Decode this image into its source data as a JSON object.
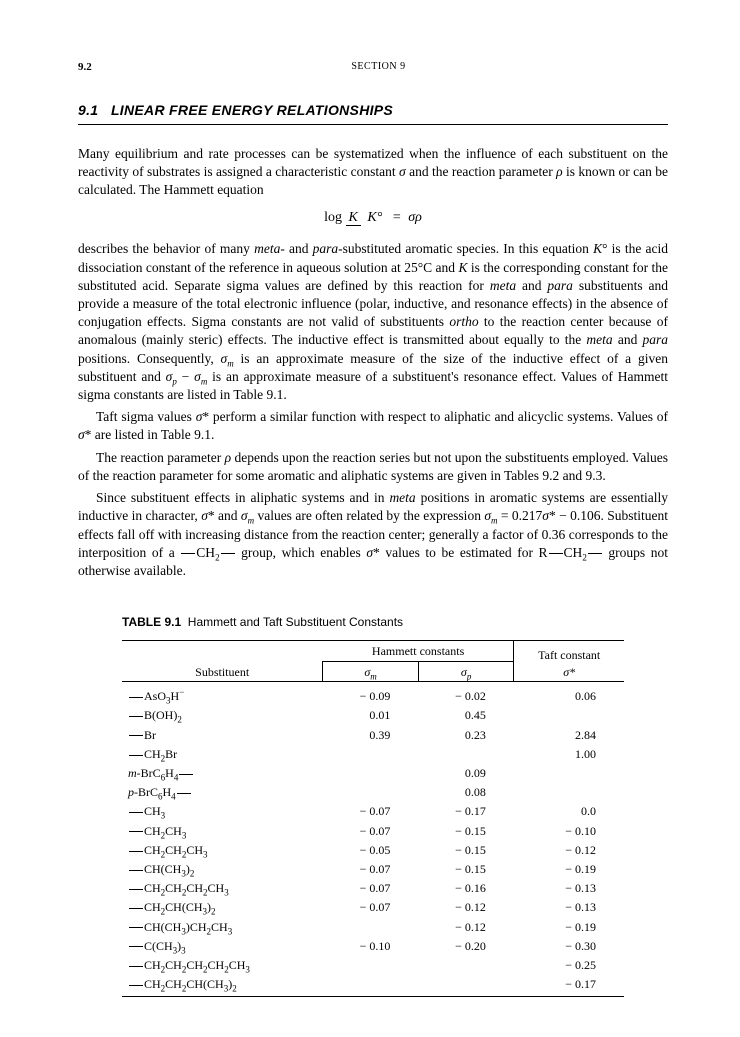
{
  "header": {
    "page": "9.2",
    "section": "SECTION 9"
  },
  "heading": {
    "number": "9.1",
    "title": "LINEAR FREE ENERGY RELATIONSHIPS"
  },
  "paragraphs": {
    "p1a": "Many equilibrium and rate processes can be systematized when the influence of each substituent on the reactivity of substrates is assigned a characteristic constant ",
    "p1b": "σ",
    "p1c": " and the reaction parameter ",
    "p1d": "ρ",
    "p1e": " is known or can be calculated. The Hammett equation",
    "eq": {
      "log": "log",
      "numK": "K",
      "denK": "K°",
      "eq": "=",
      "rhs": "σρ"
    },
    "p2": "describes the behavior of many <i>meta-</i> and <i>para-</i>substituted aromatic species. In this equation <i>K</i>° is the acid dissociation constant of the reference in aqueous solution at 25°C and <i>K</i> is the corresponding constant for the substituted acid. Separate sigma values are defined by this reaction for <i>meta</i> and <i>para</i> substituents and provide a measure of the total electronic influence (polar, inductive, and resonance effects) in the absence of conjugation effects. Sigma constants are not valid of substituents <i>ortho</i> to the reaction center because of anomalous (mainly steric) effects. The inductive effect is transmitted about equally to the <i>meta</i> and <i>para</i> positions. Consequently, <i>σ<sub>m</sub></i> is an approximate measure of the size of the inductive effect of a given substituent and <i>σ<sub>p</sub></i> − <i>σ<sub>m</sub></i> is an approximate measure of a substituent's resonance effect. Values of Hammett sigma constants are listed in Table 9.1.",
    "p3": "Taft sigma values <i>σ</i>* perform a similar function with respect to aliphatic and alicyclic systems. Values of <i>σ</i>* are listed in Table 9.1.",
    "p4": "The reaction parameter <i>ρ</i> depends upon the reaction series but not upon the substituents employed. Values of the reaction parameter for some aromatic and aliphatic systems are given in Tables 9.2 and 9.3.",
    "p5": "Since substituent effects in aliphatic systems and in <i>meta</i> positions in aromatic systems are essentially inductive in character, <i>σ</i>* and <i>σ<sub>m</sub></i> values are often related by the expression <i>σ<sub>m</sub></i> = 0.217<i>σ</i>* − 0.106. Substituent effects fall off with increasing distance from the reaction center; generally a factor of 0.36 corresponds to the interposition of a <span class=\"bond\"></span>CH<sub>2</sub><span class=\"bond\"></span> group, which enables <i>σ</i>* values to be estimated for R<span class=\"bond\"></span>CH<sub>2</sub><span class=\"bond\"></span> groups not otherwise available."
  },
  "table": {
    "number": "TABLE 9.1",
    "title": "Hammett and Taft Substituent Constants",
    "col_substituent": "Substituent",
    "col_group_hammett": "Hammett constants",
    "col_group_taft": "Taft constant",
    "col_sm": "σ<sub>m</sub>",
    "col_sp": "σ<sub>p</sub>",
    "col_st": "σ*",
    "rows": [
      {
        "s": "<span class=\"bond\"></span>AsO<sub>3</sub>H<sup>−</sup>",
        "sm": "− 0.09",
        "sp": "− 0.02",
        "st": "0.06"
      },
      {
        "s": "<span class=\"bond\"></span>B(OH)<sub>2</sub>",
        "sm": "0.01",
        "sp": "0.45",
        "st": ""
      },
      {
        "s": "<span class=\"bond\"></span>Br",
        "sm": "0.39",
        "sp": "0.23",
        "st": "2.84"
      },
      {
        "s": "<span class=\"bond\"></span>CH<sub>2</sub>Br",
        "sm": "",
        "sp": "",
        "st": "1.00"
      },
      {
        "s": "<i>m</i>-BrC<sub>6</sub>H<sub>4</sub><span class=\"bond\"></span>",
        "sm": "",
        "sp": "0.09",
        "st": ""
      },
      {
        "s": "<i>p</i>-BrC<sub>6</sub>H<sub>4</sub><span class=\"bond\"></span>",
        "sm": "",
        "sp": "0.08",
        "st": ""
      },
      {
        "s": "<span class=\"bond\"></span>CH<sub>3</sub>",
        "sm": "− 0.07",
        "sp": "− 0.17",
        "st": "0.0"
      },
      {
        "s": "<span class=\"bond\"></span>CH<sub>2</sub>CH<sub>3</sub>",
        "sm": "− 0.07",
        "sp": "− 0.15",
        "st": "− 0.10"
      },
      {
        "s": "<span class=\"bond\"></span>CH<sub>2</sub>CH<sub>2</sub>CH<sub>3</sub>",
        "sm": "− 0.05",
        "sp": "− 0.15",
        "st": "− 0.12"
      },
      {
        "s": "<span class=\"bond\"></span>CH(CH<sub>3</sub>)<sub>2</sub>",
        "sm": "− 0.07",
        "sp": "− 0.15",
        "st": "− 0.19"
      },
      {
        "s": "<span class=\"bond\"></span>CH<sub>2</sub>CH<sub>2</sub>CH<sub>2</sub>CH<sub>3</sub>",
        "sm": "− 0.07",
        "sp": "− 0.16",
        "st": "− 0.13"
      },
      {
        "s": "<span class=\"bond\"></span>CH<sub>2</sub>CH(CH<sub>3</sub>)<sub>2</sub>",
        "sm": "− 0.07",
        "sp": "− 0.12",
        "st": "− 0.13"
      },
      {
        "s": "<span class=\"bond\"></span>CH(CH<sub>3</sub>)CH<sub>2</sub>CH<sub>3</sub>",
        "sm": "",
        "sp": "− 0.12",
        "st": "− 0.19"
      },
      {
        "s": "<span class=\"bond\"></span>C(CH<sub>3</sub>)<sub>3</sub>",
        "sm": "− 0.10",
        "sp": "− 0.20",
        "st": "− 0.30"
      },
      {
        "s": "<span class=\"bond\"></span>CH<sub>2</sub>CH<sub>2</sub>CH<sub>2</sub>CH<sub>2</sub>CH<sub>3</sub>",
        "sm": "",
        "sp": "",
        "st": "− 0.25"
      },
      {
        "s": "<span class=\"bond\"></span>CH<sub>2</sub>CH<sub>2</sub>CH(CH<sub>3</sub>)<sub>2</sub>",
        "sm": "",
        "sp": "",
        "st": "− 0.17"
      }
    ]
  }
}
